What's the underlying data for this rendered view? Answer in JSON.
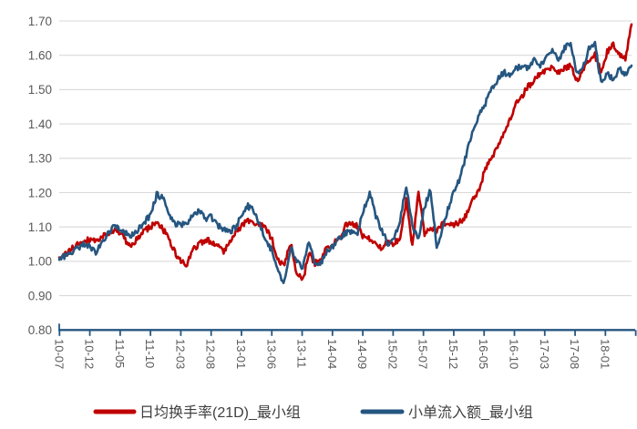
{
  "chart_data": {
    "type": "line",
    "title": "",
    "xlabel": "",
    "ylabel": "",
    "x_start": "2010-07",
    "x_end": "2018-05",
    "x_interval": "monthly",
    "x_tick_labels": [
      "10-07",
      "10-12",
      "11-05",
      "11-10",
      "12-03",
      "12-08",
      "13-01",
      "13-06",
      "13-11",
      "14-04",
      "14-09",
      "15-02",
      "15-07",
      "15-12",
      "16-05",
      "16-10",
      "17-03",
      "17-08",
      "18-01"
    ],
    "y_tick_labels": [
      "0.80",
      "0.90",
      "1.00",
      "1.10",
      "1.20",
      "1.30",
      "1.40",
      "1.50",
      "1.60",
      "1.70"
    ],
    "y_ticks": [
      0.8,
      0.9,
      1.0,
      1.1,
      1.2,
      1.3,
      1.4,
      1.5,
      1.6,
      1.7
    ],
    "ylim": [
      0.8,
      1.7
    ],
    "grid": true,
    "grid_color": "#D9D9D9",
    "axis_color": "#255680",
    "tick_label_color": "#595959",
    "legend_position": "bottom",
    "legend_text_color": "#404040",
    "series": [
      {
        "name": "日均换手率(21D)_最小组",
        "color": "#C00000",
        "values": [
          1.005,
          1.02,
          1.035,
          1.05,
          1.06,
          1.065,
          1.06,
          1.07,
          1.085,
          1.09,
          1.085,
          1.055,
          1.045,
          1.07,
          1.09,
          1.1,
          1.115,
          1.095,
          1.065,
          1.025,
          1.0,
          0.99,
          1.035,
          1.05,
          1.06,
          1.06,
          1.045,
          1.03,
          1.06,
          1.085,
          1.105,
          1.12,
          1.11,
          1.105,
          1.095,
          1.06,
          1.0,
          0.99,
          1.055,
          0.965,
          0.945,
          1.02,
          0.995,
          1.005,
          1.04,
          1.05,
          1.07,
          1.105,
          1.115,
          1.1,
          1.07,
          1.065,
          1.05,
          1.035,
          1.06,
          1.05,
          1.07,
          1.18,
          1.04,
          1.2,
          1.08,
          1.1,
          1.09,
          1.11,
          1.1,
          1.11,
          1.115,
          1.14,
          1.18,
          1.21,
          1.27,
          1.3,
          1.33,
          1.37,
          1.41,
          1.46,
          1.48,
          1.51,
          1.525,
          1.55,
          1.555,
          1.57,
          1.55,
          1.56,
          1.57,
          1.525,
          1.55,
          1.59,
          1.6,
          1.55,
          1.61,
          1.63,
          1.6,
          1.59,
          1.69
        ]
      },
      {
        "name": "小单流入额_最小组",
        "color": "#255680",
        "values": [
          1.005,
          1.015,
          1.025,
          1.04,
          1.05,
          1.045,
          1.025,
          1.055,
          1.08,
          1.1,
          1.095,
          1.08,
          1.075,
          1.095,
          1.115,
          1.135,
          1.195,
          1.185,
          1.14,
          1.11,
          1.105,
          1.115,
          1.13,
          1.145,
          1.125,
          1.13,
          1.105,
          1.09,
          1.085,
          1.1,
          1.135,
          1.16,
          1.145,
          1.105,
          1.06,
          1.03,
          0.965,
          0.94,
          1.04,
          1.0,
          0.98,
          1.055,
          1.0,
          0.995,
          1.03,
          1.045,
          1.065,
          1.08,
          1.09,
          1.08,
          1.15,
          1.2,
          1.13,
          1.09,
          1.05,
          1.07,
          1.12,
          1.22,
          1.1,
          1.07,
          1.16,
          1.21,
          1.04,
          1.1,
          1.16,
          1.21,
          1.25,
          1.32,
          1.38,
          1.43,
          1.46,
          1.5,
          1.53,
          1.55,
          1.54,
          1.56,
          1.57,
          1.56,
          1.585,
          1.57,
          1.59,
          1.61,
          1.585,
          1.62,
          1.64,
          1.55,
          1.56,
          1.62,
          1.63,
          1.52,
          1.55,
          1.53,
          1.56,
          1.545,
          1.57
        ]
      }
    ]
  }
}
